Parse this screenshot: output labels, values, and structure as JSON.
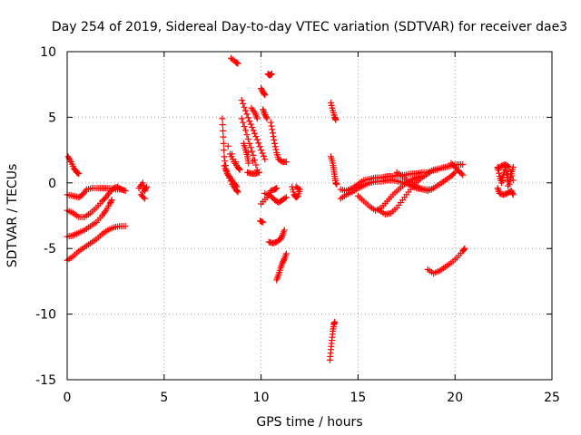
{
  "chart_data": {
    "type": "scatter",
    "title": "Day 254 of 2019, Sidereal Day-to-day VTEC variation (SDTVAR) for receiver dae3",
    "xlabel": "GPS time / hours",
    "ylabel": "SDTVAR / TECUs",
    "xlim": [
      0,
      25
    ],
    "ylim": [
      -15,
      10
    ],
    "xticks": [
      0,
      5,
      10,
      15,
      20,
      25
    ],
    "yticks": [
      -15,
      -10,
      -5,
      0,
      5,
      10
    ],
    "grid": true,
    "legend": "none",
    "marker": "plus",
    "color": "#ff0000",
    "series": [
      {
        "points": [
          [
            0.05,
            2.0
          ],
          [
            0.2,
            1.6
          ],
          [
            0.35,
            1.1
          ],
          [
            0.5,
            0.8
          ],
          [
            0.6,
            0.7
          ]
        ]
      },
      {
        "points": [
          [
            0.0,
            -0.9
          ],
          [
            0.3,
            -1.0
          ],
          [
            0.6,
            -1.1
          ],
          [
            0.8,
            -0.9
          ],
          [
            1.0,
            -0.5
          ],
          [
            1.3,
            -0.4
          ],
          [
            1.6,
            -0.4
          ],
          [
            1.9,
            -0.4
          ],
          [
            2.2,
            -0.4
          ],
          [
            2.5,
            -0.5
          ],
          [
            2.8,
            -0.5
          ],
          [
            3.0,
            -0.6
          ]
        ]
      },
      {
        "points": [
          [
            0.0,
            -2.1
          ],
          [
            0.3,
            -2.3
          ],
          [
            0.6,
            -2.6
          ],
          [
            0.9,
            -2.6
          ],
          [
            1.2,
            -2.3
          ],
          [
            1.5,
            -1.9
          ],
          [
            1.8,
            -1.4
          ],
          [
            2.0,
            -1.1
          ],
          [
            2.2,
            -0.7
          ],
          [
            2.4,
            -0.4
          ],
          [
            2.6,
            -0.3
          ],
          [
            2.8,
            -0.5
          ]
        ]
      },
      {
        "points": [
          [
            0.0,
            -4.1
          ],
          [
            0.3,
            -4.0
          ],
          [
            0.6,
            -3.8
          ],
          [
            0.9,
            -3.6
          ],
          [
            1.2,
            -3.3
          ],
          [
            1.5,
            -3.0
          ],
          [
            1.8,
            -2.5
          ],
          [
            2.0,
            -2.1
          ],
          [
            2.2,
            -1.6
          ],
          [
            2.3,
            -1.3
          ]
        ]
      },
      {
        "points": [
          [
            0.0,
            -5.9
          ],
          [
            0.3,
            -5.6
          ],
          [
            0.6,
            -5.2
          ],
          [
            0.9,
            -4.9
          ],
          [
            1.2,
            -4.6
          ],
          [
            1.5,
            -4.3
          ],
          [
            1.8,
            -3.9
          ],
          [
            2.1,
            -3.6
          ],
          [
            2.4,
            -3.4
          ],
          [
            2.7,
            -3.3
          ],
          [
            3.0,
            -3.3
          ]
        ]
      },
      {
        "points": [
          [
            3.7,
            -0.4
          ],
          [
            3.9,
            0.0
          ],
          [
            4.0,
            -0.6
          ],
          [
            4.1,
            -0.3
          ],
          [
            3.8,
            -0.9
          ],
          [
            4.0,
            -1.2
          ]
        ]
      },
      {
        "points": [
          [
            8.0,
            4.9
          ],
          [
            8.05,
            3.5
          ],
          [
            8.1,
            2.0
          ],
          [
            8.2,
            1.0
          ],
          [
            8.3,
            0.6
          ],
          [
            8.5,
            -0.1
          ],
          [
            8.7,
            -0.5
          ],
          [
            8.8,
            -0.7
          ]
        ]
      },
      {
        "points": [
          [
            8.1,
            1.3
          ],
          [
            8.25,
            0.7
          ],
          [
            8.4,
            0.4
          ],
          [
            8.6,
            0.0
          ],
          [
            8.75,
            -0.3
          ]
        ]
      },
      {
        "points": [
          [
            8.4,
            2.2
          ],
          [
            8.6,
            1.6
          ],
          [
            8.8,
            1.2
          ],
          [
            8.9,
            1.0
          ],
          [
            8.3,
            2.8
          ]
        ]
      },
      {
        "points": [
          [
            8.45,
            9.5
          ],
          [
            8.7,
            9.2
          ],
          [
            8.8,
            9.1
          ]
        ]
      },
      {
        "points": [
          [
            9.0,
            4.9
          ],
          [
            9.2,
            4.0
          ],
          [
            9.4,
            3.0
          ],
          [
            9.6,
            2.1
          ],
          [
            9.8,
            1.0
          ],
          [
            9.1,
            3.0
          ],
          [
            9.2,
            2.5
          ],
          [
            9.3,
            2.0
          ],
          [
            9.35,
            1.5
          ]
        ]
      },
      {
        "points": [
          [
            9.0,
            6.3
          ],
          [
            9.2,
            5.5
          ],
          [
            9.4,
            4.7
          ],
          [
            9.6,
            4.0
          ],
          [
            9.8,
            3.3
          ],
          [
            10.0,
            2.5
          ],
          [
            10.2,
            1.8
          ]
        ]
      },
      {
        "points": [
          [
            9.3,
            0.8
          ],
          [
            9.5,
            0.7
          ],
          [
            9.7,
            0.7
          ],
          [
            9.9,
            0.8
          ]
        ]
      },
      {
        "points": [
          [
            9.5,
            5.7
          ],
          [
            9.7,
            5.3
          ],
          [
            9.8,
            4.9
          ]
        ]
      },
      {
        "points": [
          [
            10.0,
            7.2
          ],
          [
            10.1,
            6.9
          ],
          [
            10.2,
            6.7
          ]
        ]
      },
      {
        "points": [
          [
            10.1,
            5.6
          ],
          [
            10.2,
            5.2
          ],
          [
            10.3,
            4.9
          ]
        ]
      },
      {
        "points": [
          [
            10.35,
            8.3
          ],
          [
            10.45,
            8.2
          ],
          [
            10.55,
            8.3
          ]
        ]
      },
      {
        "points": [
          [
            10.0,
            -1.6
          ],
          [
            10.3,
            -1.1
          ],
          [
            10.5,
            -0.6
          ],
          [
            10.7,
            -0.5
          ],
          [
            10.8,
            -0.4
          ]
        ]
      },
      {
        "points": [
          [
            9.95,
            -2.9
          ],
          [
            10.1,
            -3.0
          ]
        ]
      },
      {
        "points": [
          [
            10.2,
            -0.8
          ],
          [
            10.5,
            -1.0
          ],
          [
            10.7,
            -1.3
          ],
          [
            10.9,
            -1.5
          ],
          [
            11.1,
            -1.3
          ],
          [
            11.3,
            -1.1
          ]
        ]
      },
      {
        "points": [
          [
            10.5,
            4.6
          ],
          [
            10.6,
            3.8
          ],
          [
            10.7,
            3.0
          ],
          [
            10.8,
            2.3
          ],
          [
            10.9,
            1.8
          ],
          [
            11.1,
            1.6
          ],
          [
            11.3,
            1.6
          ]
        ]
      },
      {
        "points": [
          [
            10.4,
            -4.5
          ],
          [
            10.6,
            -4.6
          ],
          [
            10.8,
            -4.5
          ],
          [
            11.0,
            -4.3
          ],
          [
            11.1,
            -4.0
          ],
          [
            11.2,
            -3.6
          ]
        ]
      },
      {
        "points": [
          [
            10.8,
            -7.4
          ],
          [
            10.9,
            -7.0
          ],
          [
            11.0,
            -6.5
          ],
          [
            11.1,
            -6.1
          ],
          [
            11.2,
            -5.8
          ],
          [
            11.3,
            -5.4
          ]
        ]
      },
      {
        "points": [
          [
            11.6,
            -0.3
          ],
          [
            11.7,
            -0.9
          ],
          [
            11.8,
            -1.1
          ],
          [
            11.9,
            -1.0
          ],
          [
            12.0,
            -0.5
          ],
          [
            11.8,
            -0.3
          ]
        ]
      },
      {
        "points": [
          [
            13.6,
            6.1
          ],
          [
            13.7,
            5.5
          ],
          [
            13.8,
            5.0
          ],
          [
            13.85,
            4.8
          ]
        ]
      },
      {
        "points": [
          [
            13.6,
            2.0
          ],
          [
            13.7,
            1.5
          ],
          [
            13.75,
            1.0
          ],
          [
            13.8,
            0.5
          ],
          [
            13.85,
            0.0
          ],
          [
            13.9,
            -0.1
          ]
        ]
      },
      {
        "points": [
          [
            13.55,
            -13.5
          ],
          [
            13.6,
            -12.7
          ],
          [
            13.65,
            -12.0
          ],
          [
            13.7,
            -11.3
          ],
          [
            13.75,
            -10.8
          ],
          [
            13.8,
            -10.6
          ]
        ]
      },
      {
        "points": [
          [
            14.1,
            -0.5
          ],
          [
            14.4,
            -0.6
          ],
          [
            14.7,
            -0.4
          ],
          [
            15.0,
            -0.1
          ],
          [
            15.3,
            0.2
          ],
          [
            15.6,
            0.3
          ],
          [
            15.9,
            0.4
          ],
          [
            16.2,
            0.4
          ],
          [
            16.5,
            0.5
          ],
          [
            16.8,
            0.5
          ],
          [
            17.1,
            0.6
          ],
          [
            17.4,
            0.6
          ],
          [
            17.7,
            0.7
          ],
          [
            18.0,
            0.7
          ],
          [
            18.3,
            0.8
          ],
          [
            18.6,
            0.8
          ],
          [
            18.9,
            1.0
          ],
          [
            19.2,
            1.1
          ],
          [
            19.5,
            1.2
          ],
          [
            19.8,
            1.3
          ],
          [
            20.1,
            1.4
          ],
          [
            20.4,
            1.4
          ]
        ]
      },
      {
        "points": [
          [
            14.1,
            -1.2
          ],
          [
            14.4,
            -0.9
          ],
          [
            14.7,
            -0.7
          ],
          [
            15.0,
            -0.4
          ],
          [
            15.3,
            -0.2
          ],
          [
            15.6,
            0.0
          ],
          [
            15.9,
            0.1
          ],
          [
            16.2,
            0.1
          ],
          [
            16.5,
            0.2
          ],
          [
            16.8,
            0.2
          ],
          [
            17.1,
            0.1
          ],
          [
            17.4,
            0.0
          ],
          [
            17.7,
            -0.2
          ],
          [
            18.0,
            -0.4
          ],
          [
            18.3,
            -0.5
          ],
          [
            18.6,
            -0.6
          ],
          [
            18.9,
            -0.4
          ],
          [
            19.2,
            -0.1
          ],
          [
            19.5,
            0.2
          ],
          [
            19.8,
            0.5
          ],
          [
            20.0,
            0.8
          ]
        ]
      },
      {
        "points": [
          [
            15.0,
            -1.0
          ],
          [
            15.3,
            -1.4
          ],
          [
            15.6,
            -1.8
          ],
          [
            15.9,
            -2.1
          ],
          [
            16.2,
            -1.9
          ],
          [
            16.5,
            -1.4
          ],
          [
            16.8,
            -0.9
          ],
          [
            17.1,
            -0.5
          ],
          [
            17.4,
            -0.1
          ],
          [
            17.7,
            0.2
          ],
          [
            18.0,
            0.4
          ],
          [
            18.3,
            0.5
          ]
        ]
      },
      {
        "points": [
          [
            16.1,
            -2.1
          ],
          [
            16.4,
            -2.4
          ],
          [
            16.7,
            -2.3
          ],
          [
            17.0,
            -1.9
          ],
          [
            17.3,
            -1.3
          ],
          [
            17.6,
            -0.7
          ],
          [
            17.9,
            -0.1
          ],
          [
            18.2,
            0.3
          ],
          [
            18.5,
            0.6
          ],
          [
            18.8,
            0.9
          ],
          [
            19.1,
            1.0
          ]
        ]
      },
      {
        "points": [
          [
            17.0,
            0.8
          ],
          [
            17.3,
            0.5
          ],
          [
            17.6,
            0.1
          ],
          [
            17.9,
            -0.2
          ],
          [
            18.2,
            -0.4
          ],
          [
            18.5,
            -0.5
          ],
          [
            18.8,
            -0.5
          ]
        ]
      },
      {
        "points": [
          [
            19.8,
            1.5
          ],
          [
            20.0,
            1.2
          ],
          [
            20.2,
            0.9
          ],
          [
            20.4,
            0.6
          ]
        ]
      },
      {
        "points": [
          [
            18.6,
            -6.6
          ],
          [
            18.9,
            -6.9
          ],
          [
            19.2,
            -6.7
          ],
          [
            19.5,
            -6.4
          ],
          [
            19.8,
            -6.1
          ],
          [
            20.1,
            -5.7
          ],
          [
            20.4,
            -5.2
          ],
          [
            20.5,
            -5.0
          ]
        ]
      },
      {
        "points": [
          [
            22.2,
            1.2
          ],
          [
            22.3,
            0.5
          ],
          [
            22.4,
            0.0
          ],
          [
            22.5,
            0.6
          ],
          [
            22.6,
            1.2
          ],
          [
            22.7,
            0.4
          ],
          [
            22.8,
            -0.1
          ],
          [
            22.9,
            0.7
          ],
          [
            23.0,
            1.2
          ],
          [
            22.2,
            -0.4
          ],
          [
            22.3,
            -0.8
          ],
          [
            22.5,
            -0.9
          ],
          [
            22.7,
            -0.8
          ],
          [
            22.9,
            -0.6
          ],
          [
            23.0,
            -0.9
          ],
          [
            22.2,
            1.1
          ],
          [
            22.4,
            1.3
          ],
          [
            22.6,
            1.4
          ],
          [
            22.8,
            1.2
          ],
          [
            23.0,
            0.2
          ]
        ]
      }
    ]
  }
}
